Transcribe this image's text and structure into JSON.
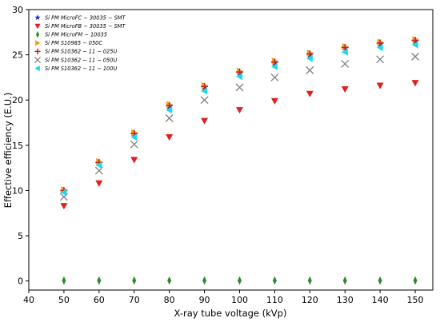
{
  "chart_data": {
    "type": "scatter",
    "title": "",
    "xlabel": "X-ray tube voltage (kVp)",
    "ylabel": "Effective efficiency (E.U.)",
    "xlim": [
      40,
      155
    ],
    "ylim": [
      -1,
      30
    ],
    "xticks": [
      40,
      50,
      60,
      70,
      80,
      90,
      100,
      110,
      120,
      130,
      140,
      150
    ],
    "yticks": [
      0,
      5,
      10,
      15,
      20,
      25,
      30
    ],
    "grid": false,
    "legend_position": "top-left",
    "x": [
      50,
      60,
      70,
      80,
      90,
      100,
      110,
      120,
      130,
      140,
      150
    ],
    "series": [
      {
        "name": "Si PM MicroFC − 30035 − SMT",
        "marker": "star",
        "color": "#1f2fd6",
        "values": [
          10.0,
          13.1,
          16.2,
          19.3,
          21.4,
          23.0,
          24.1,
          25.0,
          25.8,
          26.2,
          26.5
        ]
      },
      {
        "name": "Si PM MicroFB − 30035 − SMT",
        "marker": "triangle-down",
        "color": "#e02020",
        "values": [
          8.3,
          10.8,
          13.4,
          15.9,
          17.7,
          18.9,
          19.9,
          20.7,
          21.2,
          21.6,
          21.9
        ]
      },
      {
        "name": "Si PM MicroFM − 10035",
        "marker": "thin-diamond",
        "color": "#2a8a2a",
        "values": [
          0.05,
          0.05,
          0.05,
          0.05,
          0.05,
          0.05,
          0.05,
          0.05,
          0.05,
          0.05,
          0.05
        ]
      },
      {
        "name": "Si PM S10985 − 050C",
        "marker": "triangle-right",
        "color": "#f0a020",
        "values": [
          10.1,
          13.2,
          16.4,
          19.5,
          21.6,
          23.2,
          24.3,
          25.2,
          25.9,
          26.4,
          26.7
        ]
      },
      {
        "name": "Si PM S10362 − 11 − 025U",
        "marker": "plus",
        "color": "#c62020",
        "values": [
          10.0,
          13.1,
          16.3,
          19.4,
          21.5,
          23.1,
          24.2,
          25.1,
          25.8,
          26.3,
          26.6
        ]
      },
      {
        "name": "Si PM S10362 − 11 − 050U",
        "marker": "x",
        "color": "#808080",
        "values": [
          9.3,
          12.2,
          15.1,
          18.0,
          20.0,
          21.4,
          22.5,
          23.3,
          24.0,
          24.5,
          24.8
        ]
      },
      {
        "name": "Si PM S10362 − 11 − 100U",
        "marker": "triangle-left",
        "color": "#22d8e8",
        "values": [
          9.8,
          12.8,
          15.9,
          18.9,
          21.0,
          22.6,
          23.7,
          24.6,
          25.3,
          25.8,
          26.1
        ]
      }
    ]
  }
}
